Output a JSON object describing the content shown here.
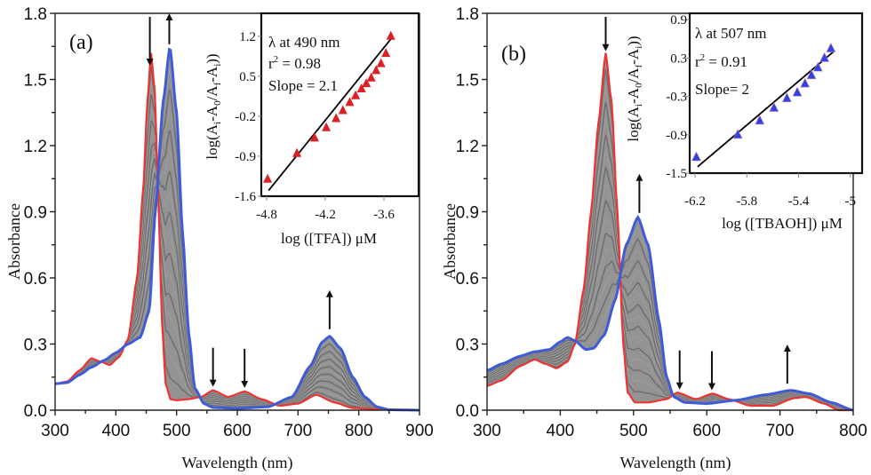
{
  "chart_data": [
    {
      "id": "a",
      "type": "line",
      "panel_label": "(a)",
      "xlabel": "Wavelength (nm)",
      "ylabel": "Absorbance",
      "xlim": [
        300,
        900
      ],
      "ylim": [
        0,
        1.8
      ],
      "xticks": [
        300,
        400,
        500,
        600,
        700,
        800,
        900
      ],
      "xtick_labels": [
        "300",
        "400",
        "500",
        "600",
        "700",
        "800",
        "900"
      ],
      "yticks": [
        0,
        0.3,
        0.6,
        0.9,
        1.2,
        1.5,
        1.8
      ],
      "ytick_labels": [
        "0.0",
        "0.3",
        "0.6",
        "0.9",
        "1.2",
        "1.5",
        "1.8"
      ],
      "n_intermediate_traces": 16,
      "colors": {
        "initial": "#ee3333",
        "final": "#3f5bd8",
        "intermediate": "#777777",
        "fill": "#808080"
      },
      "series": [
        {
          "name": "initial (red)",
          "points": [
            [
              300,
              0.12
            ],
            [
              320,
              0.13
            ],
            [
              340,
              0.18
            ],
            [
              360,
              0.235
            ],
            [
              375,
              0.22
            ],
            [
              390,
              0.205
            ],
            [
              405,
              0.24
            ],
            [
              420,
              0.32
            ],
            [
              435,
              0.6
            ],
            [
              445,
              1.0
            ],
            [
              452,
              1.4
            ],
            [
              458,
              1.62
            ],
            [
              464,
              1.45
            ],
            [
              470,
              0.95
            ],
            [
              476,
              0.4
            ],
            [
              482,
              0.12
            ],
            [
              490,
              0.05
            ],
            [
              500,
              0.045
            ],
            [
              520,
              0.05
            ],
            [
              540,
              0.06
            ],
            [
              560,
              0.09
            ],
            [
              585,
              0.06
            ],
            [
              612,
              0.085
            ],
            [
              640,
              0.05
            ],
            [
              670,
              0.02
            ],
            [
              700,
              0.03
            ],
            [
              730,
              0.07
            ],
            [
              760,
              0.035
            ],
            [
              790,
              0.01
            ],
            [
              830,
              0.005
            ],
            [
              900,
              0.0
            ]
          ]
        },
        {
          "name": "final (blue)",
          "points": [
            [
              300,
              0.12
            ],
            [
              320,
              0.125
            ],
            [
              340,
              0.16
            ],
            [
              360,
              0.195
            ],
            [
              380,
              0.225
            ],
            [
              400,
              0.26
            ],
            [
              420,
              0.3
            ],
            [
              440,
              0.33
            ],
            [
              455,
              0.45
            ],
            [
              465,
              0.9
            ],
            [
              478,
              1.4
            ],
            [
              489,
              1.65
            ],
            [
              500,
              1.35
            ],
            [
              510,
              0.8
            ],
            [
              520,
              0.35
            ],
            [
              530,
              0.1
            ],
            [
              545,
              0.03
            ],
            [
              560,
              0.012
            ],
            [
              600,
              0.008
            ],
            [
              650,
              0.015
            ],
            [
              690,
              0.06
            ],
            [
              720,
              0.2
            ],
            [
              740,
              0.31
            ],
            [
              752,
              0.335
            ],
            [
              770,
              0.28
            ],
            [
              790,
              0.15
            ],
            [
              810,
              0.06
            ],
            [
              830,
              0.015
            ],
            [
              850,
              0.002
            ],
            [
              900,
              0.0
            ]
          ]
        }
      ],
      "arrows": [
        {
          "x": 456,
          "direction": "down"
        },
        {
          "x": 488,
          "direction": "up"
        },
        {
          "x": 560,
          "direction": "down"
        },
        {
          "x": 612,
          "direction": "down"
        },
        {
          "x": 752,
          "direction": "up"
        }
      ],
      "inset": {
        "type": "scatter",
        "xlabel": "log ([TFA]) μM",
        "ylabel": "log(Ai-A0/Af-Ai))",
        "xlim": [
          -4.8,
          -3.3
        ],
        "ylim": [
          -1.6,
          1.6
        ],
        "xticks": [
          -4.8,
          -4.2,
          -3.6
        ],
        "xtick_labels": [
          "-4.8",
          "-4.2",
          "-3.6"
        ],
        "yticks": [
          -1.6,
          -0.9,
          -0.2,
          0.5,
          1.2
        ],
        "ytick_labels": [
          "-1.6",
          "-0.9",
          "-0.2",
          "0.5",
          "1.2"
        ],
        "annotations": [
          "λ at 490 nm",
          "r² = 0.98",
          "Slope = 2.1"
        ],
        "marker_color": "#dd1f26",
        "points": [
          [
            -4.79,
            -1.3
          ],
          [
            -4.49,
            -0.85
          ],
          [
            -4.31,
            -0.58
          ],
          [
            -4.19,
            -0.4
          ],
          [
            -4.09,
            -0.24
          ],
          [
            -4.02,
            -0.1
          ],
          [
            -3.95,
            0.04
          ],
          [
            -3.89,
            0.16
          ],
          [
            -3.83,
            0.28
          ],
          [
            -3.78,
            0.37
          ],
          [
            -3.73,
            0.47
          ],
          [
            -3.68,
            0.6
          ],
          [
            -3.63,
            0.72
          ],
          [
            -3.58,
            0.9
          ],
          [
            -3.53,
            1.2
          ]
        ],
        "fit_line": [
          [
            -4.78,
            -1.5
          ],
          [
            -3.52,
            1.17
          ]
        ]
      }
    },
    {
      "id": "b",
      "type": "line",
      "panel_label": "(b)",
      "xlabel": "Wavelength (nm)",
      "ylabel": "Absorbance",
      "xlim": [
        300,
        800
      ],
      "ylim": [
        0,
        1.8
      ],
      "xticks": [
        300,
        400,
        500,
        600,
        700,
        800
      ],
      "xtick_labels": [
        "300",
        "400",
        "500",
        "600",
        "700",
        "800"
      ],
      "yticks": [
        0,
        0.3,
        0.6,
        0.9,
        1.2,
        1.5,
        1.8
      ],
      "ytick_labels": [
        "0.0",
        "0.3",
        "0.6",
        "0.9",
        "1.2",
        "1.5",
        "1.8"
      ],
      "n_intermediate_traces": 16,
      "colors": {
        "initial": "#ee3333",
        "final": "#3f5bd8",
        "intermediate": "#777777",
        "fill": "#808080"
      },
      "series": [
        {
          "name": "initial (red)",
          "points": [
            [
              300,
              0.11
            ],
            [
              320,
              0.135
            ],
            [
              345,
              0.2
            ],
            [
              365,
              0.23
            ],
            [
              380,
              0.21
            ],
            [
              395,
              0.19
            ],
            [
              410,
              0.22
            ],
            [
              420,
              0.3
            ],
            [
              432,
              0.55
            ],
            [
              442,
              0.9
            ],
            [
              452,
              1.3
            ],
            [
              462,
              1.62
            ],
            [
              470,
              1.4
            ],
            [
              478,
              0.9
            ],
            [
              486,
              0.3
            ],
            [
              492,
              0.08
            ],
            [
              502,
              0.035
            ],
            [
              520,
              0.035
            ],
            [
              545,
              0.05
            ],
            [
              560,
              0.08
            ],
            [
              585,
              0.05
            ],
            [
              608,
              0.075
            ],
            [
              630,
              0.05
            ],
            [
              660,
              0.02
            ],
            [
              690,
              0.02
            ],
            [
              720,
              0.055
            ],
            [
              735,
              0.06
            ],
            [
              760,
              0.03
            ],
            [
              780,
              0.0
            ],
            [
              800,
              0.0
            ]
          ]
        },
        {
          "name": "final (blue)",
          "points": [
            [
              300,
              0.18
            ],
            [
              320,
              0.21
            ],
            [
              345,
              0.245
            ],
            [
              365,
              0.265
            ],
            [
              385,
              0.275
            ],
            [
              400,
              0.31
            ],
            [
              410,
              0.33
            ],
            [
              420,
              0.315
            ],
            [
              435,
              0.275
            ],
            [
              445,
              0.28
            ],
            [
              460,
              0.34
            ],
            [
              475,
              0.5
            ],
            [
              490,
              0.75
            ],
            [
              506,
              0.875
            ],
            [
              520,
              0.75
            ],
            [
              535,
              0.4
            ],
            [
              545,
              0.15
            ],
            [
              555,
              0.06
            ],
            [
              570,
              0.035
            ],
            [
              600,
              0.03
            ],
            [
              640,
              0.045
            ],
            [
              680,
              0.07
            ],
            [
              715,
              0.09
            ],
            [
              740,
              0.075
            ],
            [
              770,
              0.035
            ],
            [
              800,
              0.0
            ]
          ]
        }
      ],
      "arrows": [
        {
          "x": 462,
          "direction": "down"
        },
        {
          "x": 508,
          "direction": "up"
        },
        {
          "x": 563,
          "direction": "down"
        },
        {
          "x": 607,
          "direction": "down"
        },
        {
          "x": 710,
          "direction": "up"
        }
      ],
      "inset": {
        "type": "scatter",
        "xlabel": "log ([TBAOH]) μM",
        "ylabel": "log(Ai-A0/Af-Ai))",
        "xlim": [
          -6.2,
          -4.95
        ],
        "ylim": [
          -1.5,
          1.0
        ],
        "xticks": [
          -6.2,
          -5.8,
          -5.4,
          -5.0
        ],
        "xtick_labels": [
          "-6.2",
          "-5.8",
          "-5.4",
          "-5"
        ],
        "yticks": [
          -1.5,
          -0.9,
          -0.3,
          0.3,
          0.9
        ],
        "ytick_labels": [
          "-1.5",
          "-0.9",
          "-0.3",
          "0.3",
          "0.9"
        ],
        "annotations": [
          "λ at 507 nm",
          "r² = 0.91",
          "Slope= 2"
        ],
        "marker_color": "#3344dd",
        "points": [
          [
            -6.19,
            -1.25
          ],
          [
            -5.87,
            -0.9
          ],
          [
            -5.7,
            -0.68
          ],
          [
            -5.59,
            -0.48
          ],
          [
            -5.49,
            -0.33
          ],
          [
            -5.41,
            -0.24
          ],
          [
            -5.35,
            -0.1
          ],
          [
            -5.3,
            0.03
          ],
          [
            -5.25,
            0.15
          ],
          [
            -5.2,
            0.3
          ],
          [
            -5.15,
            0.45
          ]
        ],
        "fit_line": [
          [
            -6.18,
            -1.4
          ],
          [
            -5.13,
            0.4
          ]
        ]
      }
    }
  ]
}
